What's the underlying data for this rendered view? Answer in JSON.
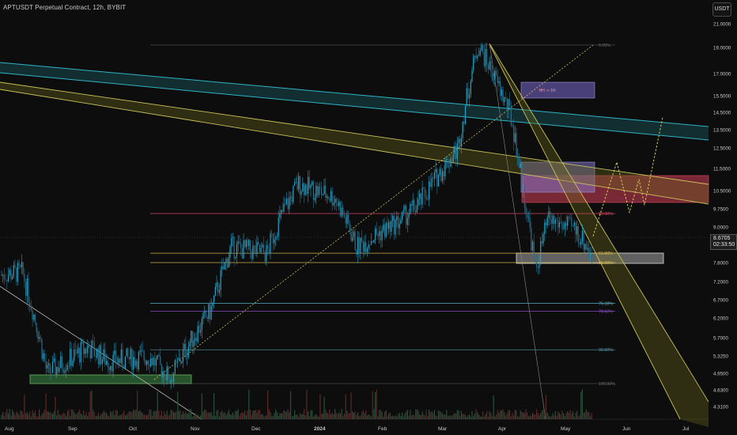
{
  "header": {
    "title": "APTUSDT Perpetual Contract, 12h, BYBIT",
    "currency_button": "USDT"
  },
  "last_price": {
    "value": "8.6705",
    "countdown": "02:33:50"
  },
  "colors": {
    "background": "#0d0d0d",
    "up_candle": "#26a3c9",
    "down_candle": "#2e6d86",
    "red_zone": "#e0465f",
    "purple_zone": "#7b6fc9",
    "cyan_channel": "#2fb3c6",
    "yellow_channel": "#c9c25a",
    "fib_line": "#6d6d6d",
    "fib_50": "#e0465f",
    "fib_618": "#d6b74a",
    "fib_786": "#8e4fc9"
  },
  "chart_data": {
    "type": "candlestick",
    "symbol": "APTUSDT",
    "timeframe": "12h",
    "y_scale": "log",
    "ylim": [
      4.1,
      21.5
    ],
    "y_ticks": [
      "21.0000",
      "19.0000",
      "17.0000",
      "15.5000",
      "14.5000",
      "13.5000",
      "12.5000",
      "11.5000",
      "10.5000",
      "9.7500",
      "9.0000",
      "7.8000",
      "7.2000",
      "6.7000",
      "6.2000",
      "5.7000",
      "5.3250",
      "4.9500",
      "4.6300",
      "4.3100"
    ],
    "x_ticks": [
      "Aug",
      "Sep",
      "Oct",
      "Nov",
      "Dec",
      "2024",
      "Feb",
      "Mar",
      "Apr",
      "May",
      "Jun",
      "Jul"
    ],
    "fib_levels": [
      {
        "label": "0.00%",
        "price": 19.2
      },
      {
        "label": "50.00%",
        "price": 9.55
      },
      {
        "label": "61.80%",
        "price": 8.1
      },
      {
        "label": "65.00%",
        "price": 7.8
      },
      {
        "label": "76.18%",
        "price": 6.6
      },
      {
        "label": "78.60%",
        "price": 6.38
      },
      {
        "label": "90.00%",
        "price": 5.45
      },
      {
        "label": "100.00%",
        "price": 4.75
      }
    ],
    "zones": [
      {
        "name": "purple-zone-top",
        "label": "HH -> 1H",
        "price_low": 15.2,
        "price_high": 16.3
      },
      {
        "name": "purple-zone-mid",
        "label": "",
        "price_low": 10.4,
        "price_high": 11.9
      },
      {
        "name": "red-zone",
        "label": "",
        "price_low": 9.95,
        "price_high": 11.2
      },
      {
        "name": "gray-zone",
        "label": "",
        "price_low": 7.8,
        "price_high": 8.1
      },
      {
        "name": "green-zone",
        "label": "",
        "price_low": 4.8,
        "price_high": 4.98
      }
    ],
    "trend_lines": [
      {
        "name": "cyan-channel",
        "points": [
          [
            "Aug",
            17.6
          ],
          [
            "Jul",
            13.3
          ]
        ]
      },
      {
        "name": "yellow-channel",
        "points": [
          [
            "Aug",
            16.2
          ],
          [
            "Jul",
            10.0
          ]
        ]
      },
      {
        "name": "descending-wedge",
        "points": [
          [
            "Mar",
            19.2
          ],
          [
            "Jul",
            4.3
          ]
        ]
      },
      {
        "name": "dotted-uptrend",
        "points": [
          [
            "Oct",
            4.8
          ],
          [
            "Mar",
            19.2
          ]
        ]
      }
    ],
    "price_path_approx": [
      [
        "Aug",
        7.5
      ],
      [
        "Aug",
        4.95
      ],
      [
        "Sep",
        5.5
      ],
      [
        "Sep",
        5.2
      ],
      [
        "Oct",
        5.3
      ],
      [
        "Oct",
        4.85
      ],
      [
        "Nov",
        6.4
      ],
      [
        "Nov",
        8.3
      ],
      [
        "Dec",
        8.1
      ],
      [
        "Dec",
        9.6
      ],
      [
        "Dec",
        10.8
      ],
      [
        "2024",
        10.2
      ],
      [
        "2024",
        8.3
      ],
      [
        "Feb",
        9.2
      ],
      [
        "Feb",
        9.9
      ],
      [
        "Mar",
        12.5
      ],
      [
        "Mar",
        19.2
      ],
      [
        "Apr",
        14.3
      ],
      [
        "Apr",
        10.5
      ],
      [
        "Apr",
        7.5
      ],
      [
        "Apr",
        9.3
      ],
      [
        "May",
        8.9
      ],
      [
        "May",
        8.1
      ],
      [
        "May",
        8.67
      ]
    ],
    "projection": [
      8.67,
      11.8,
      9.6,
      11.0,
      9.9,
      14.2
    ]
  }
}
